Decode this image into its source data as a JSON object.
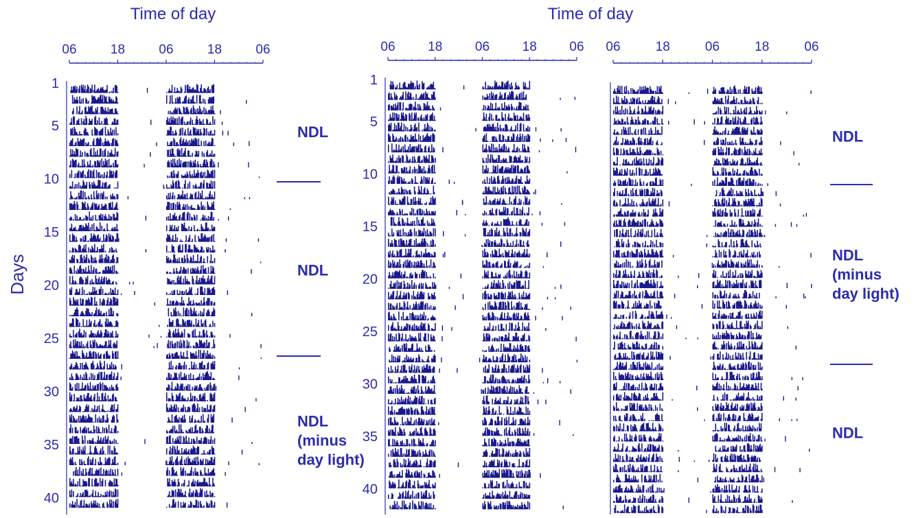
{
  "y_axis_label": "Days",
  "colors": {
    "ink": "#2b2bb0",
    "bars": "#1a1a8c"
  },
  "chart_data": [
    {
      "type": "actogram",
      "title": "Time of day",
      "x_ticks": [
        "06",
        "18",
        "06",
        "18",
        "06"
      ],
      "y_ticks": [
        "1",
        "5",
        "10",
        "15",
        "20",
        "25",
        "30",
        "35",
        "40"
      ],
      "days": 42,
      "day_label_values": [
        1,
        5,
        10,
        15,
        20,
        25,
        30,
        35,
        40
      ],
      "activity_onset_h": 0,
      "activity_offset_h": 12,
      "phases": [
        {
          "lines": [
            "NDL"
          ],
          "start_day": 1,
          "end_day": 10
        },
        {
          "lines": [
            "NDL"
          ],
          "start_day": 10,
          "end_day": 27
        },
        {
          "lines": [
            "NDL",
            "(minus",
            "day light)"
          ],
          "start_day": 27,
          "end_day": 42
        }
      ]
    },
    {
      "type": "actogram",
      "title": "Time of day",
      "x_ticks": [
        "06",
        "18",
        "06",
        "18",
        "06"
      ],
      "y_ticks": [
        "1",
        "5",
        "10",
        "15",
        "20",
        "25",
        "30",
        "35",
        "40"
      ],
      "days": 42,
      "day_label_values": [
        1,
        5,
        10,
        15,
        20,
        25,
        30,
        35,
        40
      ],
      "activity_onset_h": 0,
      "activity_offset_h": 12,
      "phases": []
    },
    {
      "type": "actogram",
      "title": "",
      "x_ticks": [
        "06",
        "18",
        "06",
        "18",
        "06"
      ],
      "y_ticks": [],
      "days": 42,
      "day_label_values": [],
      "activity_onset_h": 0,
      "activity_offset_h": 12,
      "phases": [
        {
          "lines": [
            "NDL"
          ],
          "start_day": 1,
          "end_day": 11
        },
        {
          "lines": [
            "NDL",
            "(minus",
            "day light)"
          ],
          "start_day": 11,
          "end_day": 28
        },
        {
          "lines": [
            "NDL"
          ],
          "start_day": 28,
          "end_day": 42
        }
      ]
    }
  ]
}
